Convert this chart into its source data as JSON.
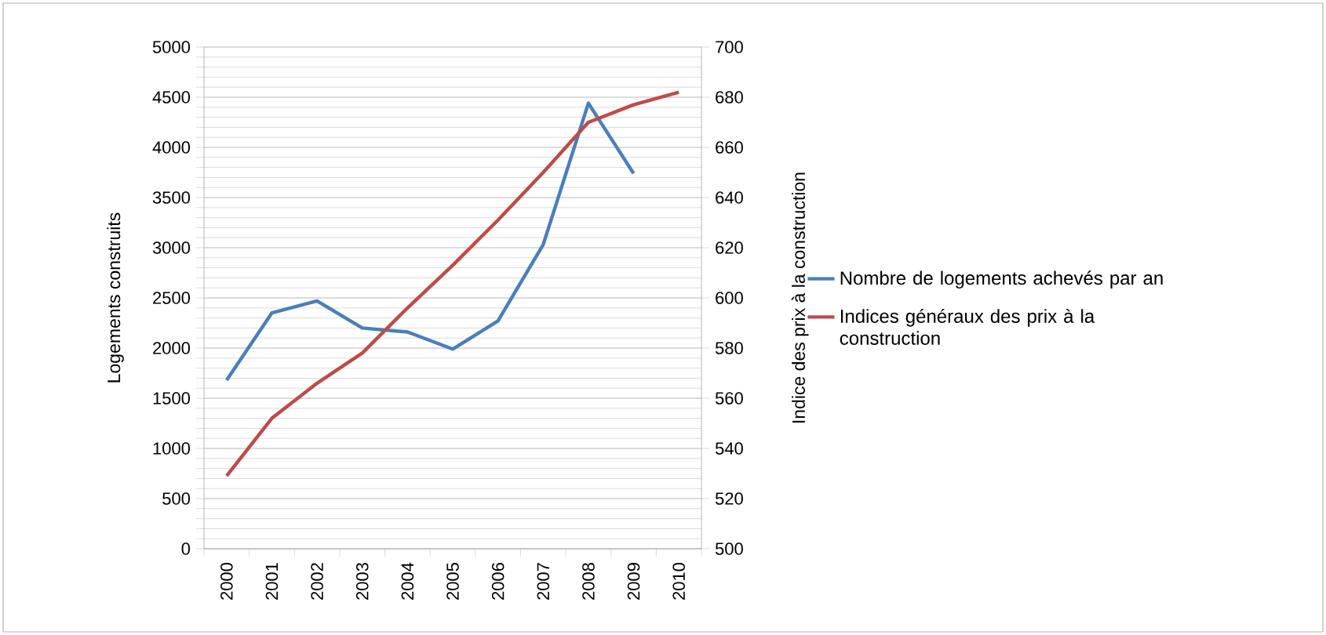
{
  "chart_data": {
    "type": "line",
    "categories": [
      "2000",
      "2001",
      "2002",
      "2003",
      "2004",
      "2005",
      "2006",
      "2007",
      "2008",
      "2009",
      "2010"
    ],
    "ylabel": "Logements construits",
    "y2label": "Indice des prix à la construction",
    "ylim": [
      0,
      5000
    ],
    "yticks": [
      0,
      500,
      1000,
      1500,
      2000,
      2500,
      3000,
      3500,
      4000,
      4500,
      5000
    ],
    "y2lim": [
      500,
      700
    ],
    "y2ticks": [
      500,
      520,
      540,
      560,
      580,
      600,
      620,
      640,
      660,
      680,
      700
    ],
    "grid": "y",
    "legend": "right",
    "marker": "none",
    "line_style": "solid",
    "series": [
      {
        "name": "Nombre de logements achevés par an",
        "color": "#4a7ebb",
        "values": [
          1680,
          2350,
          2470,
          2200,
          2160,
          1990,
          2270,
          3030,
          4440,
          3740,
          null
        ]
      },
      {
        "name": "Indices généraux des prix à la construction",
        "color": "#be4b48",
        "axis": "y2",
        "values": [
          529,
          552,
          566,
          578,
          596,
          613,
          631,
          650,
          670,
          677,
          682
        ]
      }
    ]
  }
}
